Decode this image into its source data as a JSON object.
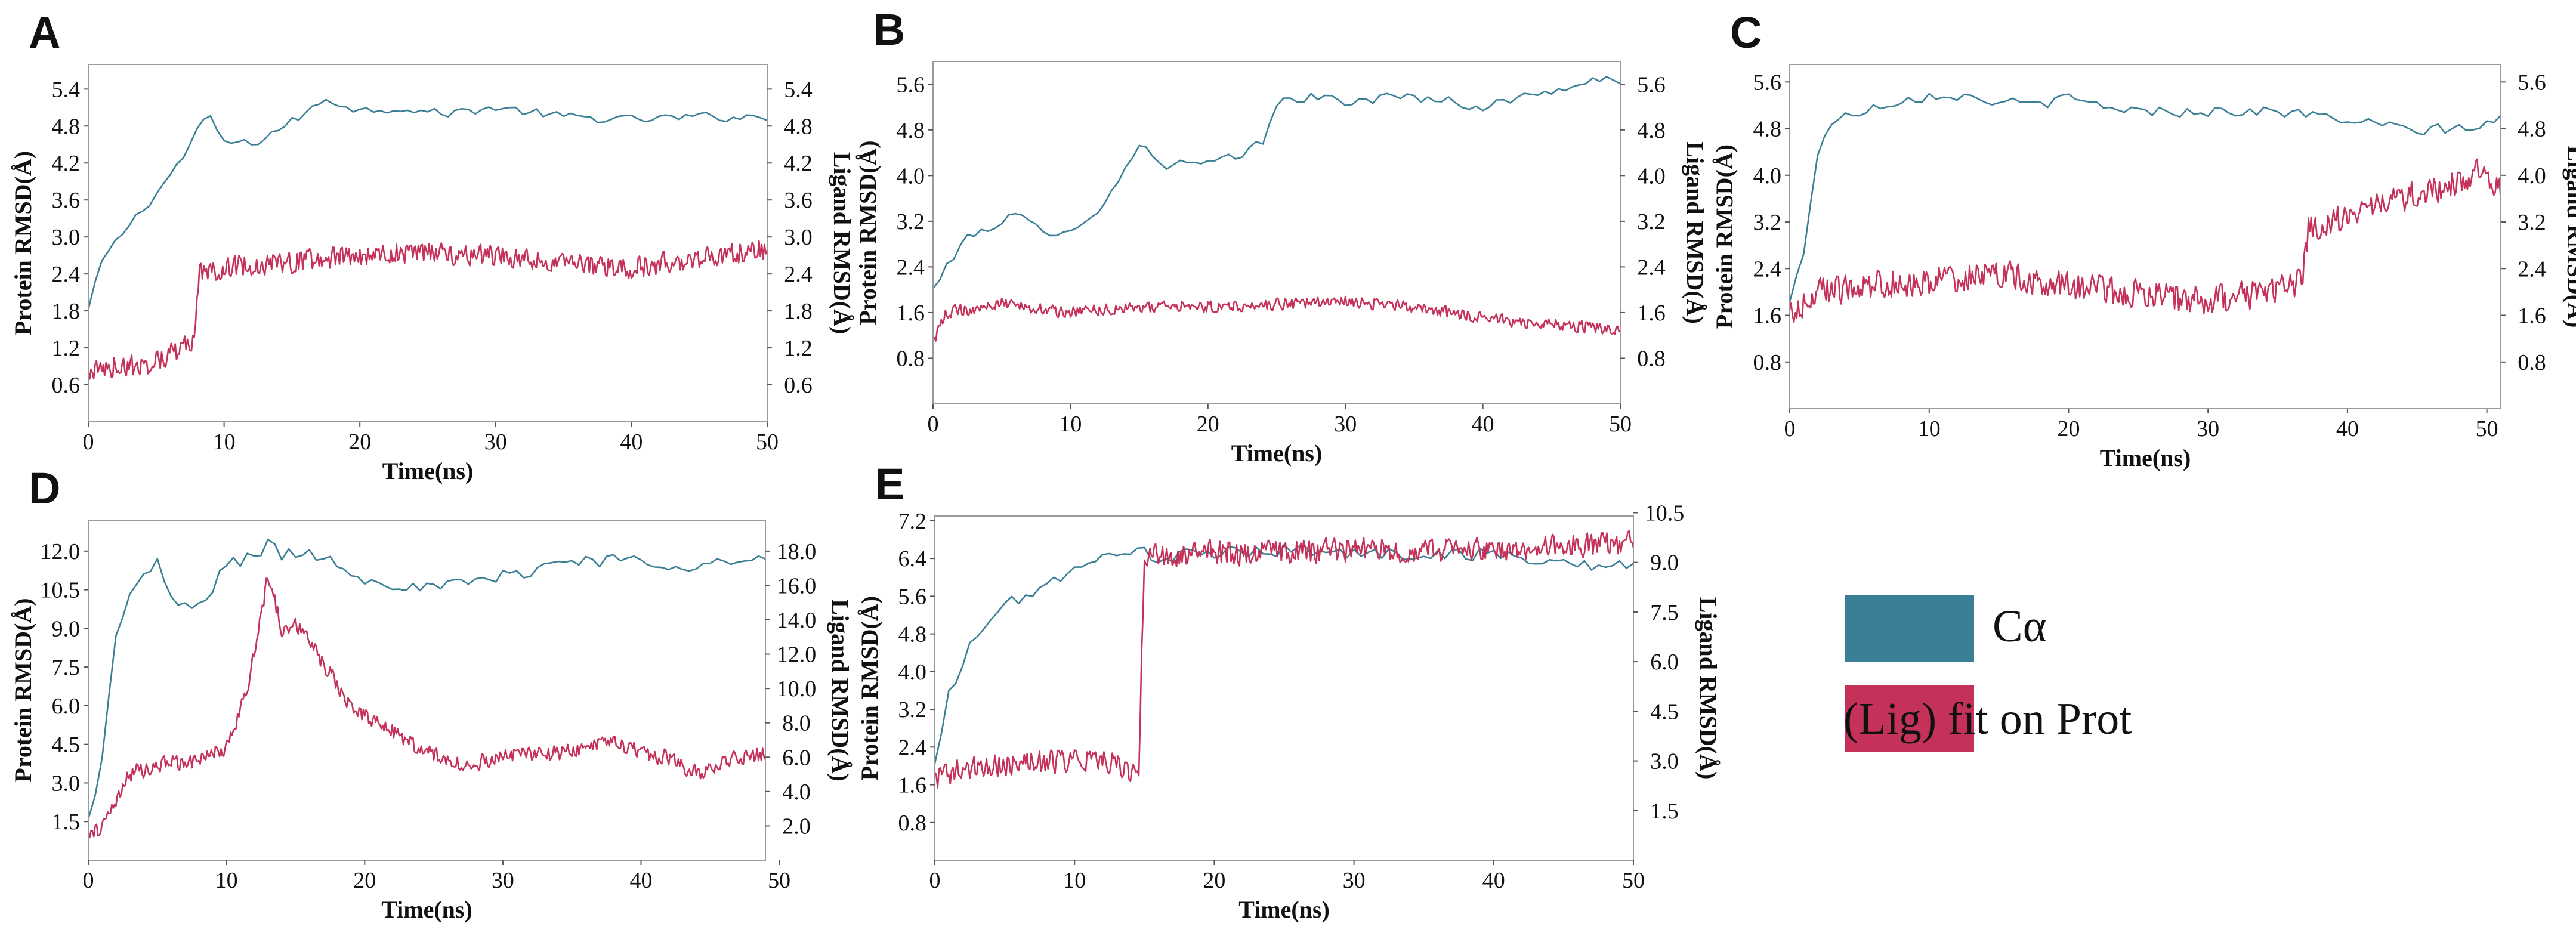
{
  "legend": {
    "entries": [
      {
        "label": "Cα",
        "color": "#3a7f96"
      },
      {
        "label": "(Lig)  fit on Prot",
        "color": "#c4325a"
      }
    ]
  },
  "chart_data": [
    {
      "panel": "A",
      "type": "line",
      "xlabel": "Time(ns)",
      "ylabel": "Protein RMSD(Å)",
      "y2label": "Ligand RMSD(Å)",
      "xlim": [
        0,
        50
      ],
      "ylim": [
        0,
        5.8
      ],
      "y2lim": [
        0,
        5.8
      ],
      "xticks": [
        0,
        10,
        20,
        30,
        40,
        50
      ],
      "yticks": [
        0.6,
        1.2,
        1.8,
        2.4,
        3.0,
        3.6,
        4.2,
        4.8,
        5.4
      ],
      "y2ticks": [
        0.6,
        1.2,
        1.8,
        2.4,
        3.0,
        3.6,
        4.2,
        4.8,
        5.4
      ],
      "series": [
        {
          "key": "ca",
          "color": "#3a7f96",
          "axis": "left",
          "noise": 0.07,
          "step": 0.5,
          "x": [
            0,
            1,
            3,
            5,
            7,
            8.5,
            9,
            10,
            12,
            14,
            16,
            17.5,
            20,
            23,
            26,
            30,
            35,
            40,
            45,
            50
          ],
          "y": [
            1.8,
            2.6,
            3.2,
            3.7,
            4.3,
            4.9,
            4.9,
            4.55,
            4.5,
            4.75,
            5.0,
            5.25,
            5.05,
            5.1,
            5.0,
            5.1,
            4.95,
            4.9,
            4.95,
            4.95
          ]
        },
        {
          "key": "lig",
          "color": "#c4325a",
          "axis": "right",
          "noise": 0.17,
          "step": 0.1,
          "x": [
            0,
            2,
            4,
            6,
            7.8,
            8.2,
            10,
            15,
            20,
            25,
            30,
            35,
            40,
            45,
            50
          ],
          "y": [
            0.8,
            0.9,
            0.9,
            1.1,
            1.3,
            2.4,
            2.5,
            2.6,
            2.7,
            2.75,
            2.7,
            2.55,
            2.5,
            2.65,
            2.8
          ]
        }
      ]
    },
    {
      "panel": "B",
      "type": "line",
      "xlabel": "Time(ns)",
      "ylabel": "Protein RMSD(Å)",
      "y2label": "Ligand RMSD(Å)",
      "xlim": [
        0,
        50
      ],
      "ylim": [
        0,
        6.0
      ],
      "y2lim": [
        0,
        6.0
      ],
      "xticks": [
        0,
        10,
        20,
        30,
        40,
        50
      ],
      "yticks": [
        0.8,
        1.6,
        2.4,
        3.2,
        4.0,
        4.8,
        5.6
      ],
      "y2ticks": [
        0.8,
        1.6,
        2.4,
        3.2,
        4.0,
        4.8,
        5.6
      ],
      "series": [
        {
          "key": "ca",
          "color": "#3a7f96",
          "axis": "left",
          "noise": 0.09,
          "step": 0.5,
          "x": [
            0,
            2,
            4,
            6,
            8,
            10,
            12,
            14,
            15,
            17,
            20,
            22,
            24,
            25,
            26,
            30,
            35,
            40,
            45,
            50
          ],
          "y": [
            2.0,
            2.8,
            3.1,
            3.3,
            3.0,
            3.1,
            3.3,
            4.2,
            4.5,
            4.2,
            4.2,
            4.3,
            4.6,
            5.2,
            5.4,
            5.3,
            5.4,
            5.2,
            5.5,
            5.7
          ]
        },
        {
          "key": "lig",
          "color": "#c4325a",
          "axis": "right",
          "noise": 0.1,
          "step": 0.1,
          "x": [
            0,
            1,
            5,
            10,
            15,
            20,
            25,
            30,
            35,
            40,
            45,
            50
          ],
          "y": [
            1.1,
            1.6,
            1.75,
            1.6,
            1.7,
            1.7,
            1.75,
            1.8,
            1.7,
            1.5,
            1.4,
            1.3
          ]
        }
      ]
    },
    {
      "panel": "C",
      "type": "line",
      "xlabel": "Time(ns)",
      "ylabel": "Protein RMSD(Å)",
      "y2label": "Ligand RMSD(Å)",
      "xlim": [
        0,
        51
      ],
      "ylim": [
        0,
        5.9
      ],
      "y2lim": [
        0,
        5.9
      ],
      "xticks": [
        0,
        10,
        20,
        30,
        40,
        50
      ],
      "yticks": [
        0.8,
        1.6,
        2.4,
        3.2,
        4.0,
        4.8,
        5.6
      ],
      "y2ticks": [
        0.8,
        1.6,
        2.4,
        3.2,
        4.0,
        4.8,
        5.6
      ],
      "series": [
        {
          "key": "ca",
          "color": "#3a7f96",
          "axis": "left",
          "noise": 0.09,
          "step": 0.5,
          "x": [
            0,
            1,
            2,
            3,
            5,
            8,
            11,
            14,
            17,
            20,
            25,
            30,
            35,
            40,
            45,
            50,
            51
          ],
          "y": [
            1.8,
            2.7,
            4.4,
            4.9,
            5.1,
            5.3,
            5.4,
            5.3,
            5.2,
            5.3,
            5.1,
            5.1,
            5.1,
            4.95,
            4.75,
            4.85,
            5.0
          ]
        },
        {
          "key": "lig",
          "color": "#c4325a",
          "axis": "right",
          "noise": 0.24,
          "step": 0.1,
          "x": [
            0,
            2,
            5,
            10,
            15,
            20,
            25,
            30,
            35,
            36.8,
            37.2,
            40,
            45,
            48,
            50,
            51
          ],
          "y": [
            1.6,
            2.0,
            2.1,
            2.2,
            2.3,
            2.1,
            1.95,
            1.85,
            2.0,
            2.2,
            3.1,
            3.3,
            3.7,
            3.9,
            4.1,
            3.7
          ]
        }
      ]
    },
    {
      "panel": "D",
      "type": "line",
      "xlabel": "Time(ns)",
      "ylabel": "Protein RMSD(Å)",
      "y2label": "Ligand RMSD(Å)",
      "xlim": [
        0,
        49
      ],
      "ylim": [
        0,
        13.2
      ],
      "y2lim": [
        0,
        19.8
      ],
      "xticks": [
        0,
        10,
        20,
        30,
        40,
        50
      ],
      "yticks": [
        1.5,
        3.0,
        4.5,
        6.0,
        7.5,
        9.0,
        10.5,
        12.0
      ],
      "y2ticks": [
        2.0,
        4.0,
        6.0,
        8.0,
        10.0,
        12.0,
        14.0,
        16.0,
        18.0
      ],
      "series": [
        {
          "key": "ca",
          "color": "#3a7f96",
          "axis": "left",
          "noise": 0.28,
          "step": 0.5,
          "x": [
            0,
            1,
            2,
            3,
            5,
            6,
            8,
            10,
            12,
            13,
            14,
            16,
            18,
            20,
            22,
            25,
            28,
            30,
            35,
            40,
            45,
            49
          ],
          "y": [
            1.5,
            4.0,
            8.5,
            10.5,
            11.5,
            10.0,
            9.8,
            11.5,
            11.8,
            12.3,
            11.8,
            12.0,
            11.5,
            11.0,
            10.8,
            10.5,
            10.8,
            11.0,
            11.7,
            11.6,
            11.5,
            11.6
          ]
        },
        {
          "key": "lig",
          "color": "#c4325a",
          "axis": "right",
          "noise": 0.45,
          "step": 0.1,
          "x": [
            0,
            1,
            2,
            3,
            5,
            8,
            10,
            11.5,
            13,
            14,
            15,
            17,
            19,
            21,
            24,
            27,
            30,
            35,
            38,
            40,
            42,
            44,
            46,
            49
          ],
          "y": [
            1.5,
            2.0,
            3.5,
            5.0,
            5.6,
            5.8,
            6.5,
            10.0,
            16.5,
            13.5,
            13.8,
            11.5,
            9.0,
            8.0,
            6.5,
            5.5,
            6.0,
            6.3,
            7.0,
            6.2,
            6.0,
            5.0,
            5.8,
            6.2
          ]
        }
      ]
    },
    {
      "panel": "E",
      "type": "line",
      "xlabel": "Time(ns)",
      "ylabel": "Protein RMSD(Å)",
      "y2label": "Ligand RMSD(Å)",
      "xlim": [
        0,
        50
      ],
      "ylim": [
        0,
        7.3
      ],
      "y2lim": [
        0,
        10.4
      ],
      "xticks": [
        0,
        10,
        20,
        30,
        40,
        50
      ],
      "yticks": [
        0.8,
        1.6,
        2.4,
        3.2,
        4.0,
        4.8,
        5.6,
        6.4,
        7.2
      ],
      "y2ticks": [
        1.5,
        3.0,
        4.5,
        6.0,
        7.5,
        9.0,
        10.5
      ],
      "series": [
        {
          "key": "ca",
          "color": "#3a7f96",
          "axis": "left",
          "noise": 0.14,
          "step": 0.5,
          "x": [
            0,
            1,
            3,
            5,
            7,
            9,
            11,
            13,
            14,
            16,
            20,
            25,
            30,
            35,
            40,
            45,
            50
          ],
          "y": [
            2.0,
            3.5,
            4.8,
            5.4,
            5.7,
            6.0,
            6.2,
            6.6,
            6.6,
            6.4,
            6.5,
            6.6,
            6.5,
            6.5,
            6.5,
            6.3,
            6.2
          ]
        },
        {
          "key": "lig",
          "color": "#c4325a",
          "axis": "right",
          "noise": 0.35,
          "step": 0.1,
          "x": [
            0,
            3,
            6,
            9,
            12,
            14,
            14.6,
            15,
            20,
            25,
            30,
            35,
            40,
            45,
            50
          ],
          "y": [
            2.5,
            2.8,
            2.9,
            3.0,
            3.1,
            2.7,
            2.9,
            9.2,
            9.3,
            9.3,
            9.4,
            9.3,
            9.4,
            9.5,
            9.6
          ]
        }
      ]
    }
  ]
}
